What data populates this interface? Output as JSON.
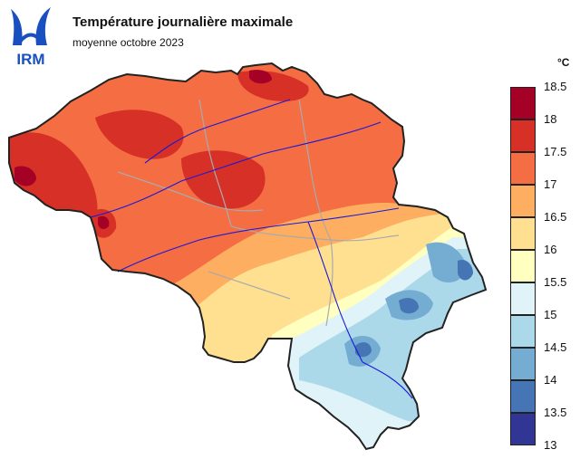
{
  "header": {
    "title": "Température journalière maximale",
    "subtitle": "moyenne octobre 2023"
  },
  "logo": {
    "text": "IRM",
    "color": "#1a4fbf"
  },
  "legend": {
    "unit": "°C",
    "ticks": [
      "18.5",
      "18",
      "17.5",
      "17",
      "16.5",
      "16",
      "15.5",
      "15",
      "14.5",
      "14",
      "13.5",
      "13"
    ],
    "bins": [
      {
        "range": [
          18.0,
          18.5
        ],
        "color": "#a50026"
      },
      {
        "range": [
          17.5,
          18.0
        ],
        "color": "#d73027"
      },
      {
        "range": [
          17.0,
          17.5
        ],
        "color": "#f46d43"
      },
      {
        "range": [
          16.5,
          17.0
        ],
        "color": "#fdae61"
      },
      {
        "range": [
          16.0,
          16.5
        ],
        "color": "#fee090"
      },
      {
        "range": [
          15.5,
          16.0
        ],
        "color": "#ffffbf"
      },
      {
        "range": [
          15.0,
          15.5
        ],
        "color": "#e0f3f8"
      },
      {
        "range": [
          14.5,
          15.0
        ],
        "color": "#abd9e9"
      },
      {
        "range": [
          14.0,
          14.5
        ],
        "color": "#74add1"
      },
      {
        "range": [
          13.5,
          14.0
        ],
        "color": "#4575b4"
      },
      {
        "range": [
          13.0,
          13.5
        ],
        "color": "#313695"
      }
    ]
  },
  "map": {
    "region": "Belgium",
    "border_color": "#222222",
    "river_color": "#1a1ad6",
    "province_color": "#aaaaaa"
  }
}
